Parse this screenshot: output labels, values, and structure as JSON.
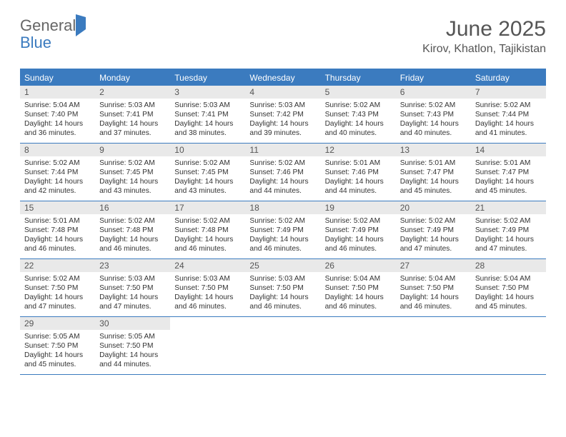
{
  "logo": {
    "general": "General",
    "blue": "Blue"
  },
  "title": "June 2025",
  "subtitle": "Kirov, Khatlon, Tajikistan",
  "colors": {
    "header_bg": "#3b7bbf",
    "header_text": "#ffffff",
    "daynum_bg": "#e9e9e9",
    "border": "#3b7bbf",
    "background": "#ffffff"
  },
  "weekdays": [
    "Sunday",
    "Monday",
    "Tuesday",
    "Wednesday",
    "Thursday",
    "Friday",
    "Saturday"
  ],
  "weeks": [
    [
      {
        "day": "1",
        "sunrise": "Sunrise: 5:04 AM",
        "sunset": "Sunset: 7:40 PM",
        "daylight": "Daylight: 14 hours and 36 minutes."
      },
      {
        "day": "2",
        "sunrise": "Sunrise: 5:03 AM",
        "sunset": "Sunset: 7:41 PM",
        "daylight": "Daylight: 14 hours and 37 minutes."
      },
      {
        "day": "3",
        "sunrise": "Sunrise: 5:03 AM",
        "sunset": "Sunset: 7:41 PM",
        "daylight": "Daylight: 14 hours and 38 minutes."
      },
      {
        "day": "4",
        "sunrise": "Sunrise: 5:03 AM",
        "sunset": "Sunset: 7:42 PM",
        "daylight": "Daylight: 14 hours and 39 minutes."
      },
      {
        "day": "5",
        "sunrise": "Sunrise: 5:02 AM",
        "sunset": "Sunset: 7:43 PM",
        "daylight": "Daylight: 14 hours and 40 minutes."
      },
      {
        "day": "6",
        "sunrise": "Sunrise: 5:02 AM",
        "sunset": "Sunset: 7:43 PM",
        "daylight": "Daylight: 14 hours and 40 minutes."
      },
      {
        "day": "7",
        "sunrise": "Sunrise: 5:02 AM",
        "sunset": "Sunset: 7:44 PM",
        "daylight": "Daylight: 14 hours and 41 minutes."
      }
    ],
    [
      {
        "day": "8",
        "sunrise": "Sunrise: 5:02 AM",
        "sunset": "Sunset: 7:44 PM",
        "daylight": "Daylight: 14 hours and 42 minutes."
      },
      {
        "day": "9",
        "sunrise": "Sunrise: 5:02 AM",
        "sunset": "Sunset: 7:45 PM",
        "daylight": "Daylight: 14 hours and 43 minutes."
      },
      {
        "day": "10",
        "sunrise": "Sunrise: 5:02 AM",
        "sunset": "Sunset: 7:45 PM",
        "daylight": "Daylight: 14 hours and 43 minutes."
      },
      {
        "day": "11",
        "sunrise": "Sunrise: 5:02 AM",
        "sunset": "Sunset: 7:46 PM",
        "daylight": "Daylight: 14 hours and 44 minutes."
      },
      {
        "day": "12",
        "sunrise": "Sunrise: 5:01 AM",
        "sunset": "Sunset: 7:46 PM",
        "daylight": "Daylight: 14 hours and 44 minutes."
      },
      {
        "day": "13",
        "sunrise": "Sunrise: 5:01 AM",
        "sunset": "Sunset: 7:47 PM",
        "daylight": "Daylight: 14 hours and 45 minutes."
      },
      {
        "day": "14",
        "sunrise": "Sunrise: 5:01 AM",
        "sunset": "Sunset: 7:47 PM",
        "daylight": "Daylight: 14 hours and 45 minutes."
      }
    ],
    [
      {
        "day": "15",
        "sunrise": "Sunrise: 5:01 AM",
        "sunset": "Sunset: 7:48 PM",
        "daylight": "Daylight: 14 hours and 46 minutes."
      },
      {
        "day": "16",
        "sunrise": "Sunrise: 5:02 AM",
        "sunset": "Sunset: 7:48 PM",
        "daylight": "Daylight: 14 hours and 46 minutes."
      },
      {
        "day": "17",
        "sunrise": "Sunrise: 5:02 AM",
        "sunset": "Sunset: 7:48 PM",
        "daylight": "Daylight: 14 hours and 46 minutes."
      },
      {
        "day": "18",
        "sunrise": "Sunrise: 5:02 AM",
        "sunset": "Sunset: 7:49 PM",
        "daylight": "Daylight: 14 hours and 46 minutes."
      },
      {
        "day": "19",
        "sunrise": "Sunrise: 5:02 AM",
        "sunset": "Sunset: 7:49 PM",
        "daylight": "Daylight: 14 hours and 46 minutes."
      },
      {
        "day": "20",
        "sunrise": "Sunrise: 5:02 AM",
        "sunset": "Sunset: 7:49 PM",
        "daylight": "Daylight: 14 hours and 47 minutes."
      },
      {
        "day": "21",
        "sunrise": "Sunrise: 5:02 AM",
        "sunset": "Sunset: 7:49 PM",
        "daylight": "Daylight: 14 hours and 47 minutes."
      }
    ],
    [
      {
        "day": "22",
        "sunrise": "Sunrise: 5:02 AM",
        "sunset": "Sunset: 7:50 PM",
        "daylight": "Daylight: 14 hours and 47 minutes."
      },
      {
        "day": "23",
        "sunrise": "Sunrise: 5:03 AM",
        "sunset": "Sunset: 7:50 PM",
        "daylight": "Daylight: 14 hours and 47 minutes."
      },
      {
        "day": "24",
        "sunrise": "Sunrise: 5:03 AM",
        "sunset": "Sunset: 7:50 PM",
        "daylight": "Daylight: 14 hours and 46 minutes."
      },
      {
        "day": "25",
        "sunrise": "Sunrise: 5:03 AM",
        "sunset": "Sunset: 7:50 PM",
        "daylight": "Daylight: 14 hours and 46 minutes."
      },
      {
        "day": "26",
        "sunrise": "Sunrise: 5:04 AM",
        "sunset": "Sunset: 7:50 PM",
        "daylight": "Daylight: 14 hours and 46 minutes."
      },
      {
        "day": "27",
        "sunrise": "Sunrise: 5:04 AM",
        "sunset": "Sunset: 7:50 PM",
        "daylight": "Daylight: 14 hours and 46 minutes."
      },
      {
        "day": "28",
        "sunrise": "Sunrise: 5:04 AM",
        "sunset": "Sunset: 7:50 PM",
        "daylight": "Daylight: 14 hours and 45 minutes."
      }
    ],
    [
      {
        "day": "29",
        "sunrise": "Sunrise: 5:05 AM",
        "sunset": "Sunset: 7:50 PM",
        "daylight": "Daylight: 14 hours and 45 minutes."
      },
      {
        "day": "30",
        "sunrise": "Sunrise: 5:05 AM",
        "sunset": "Sunset: 7:50 PM",
        "daylight": "Daylight: 14 hours and 44 minutes."
      },
      {
        "empty": true
      },
      {
        "empty": true
      },
      {
        "empty": true
      },
      {
        "empty": true
      },
      {
        "empty": true
      }
    ]
  ]
}
